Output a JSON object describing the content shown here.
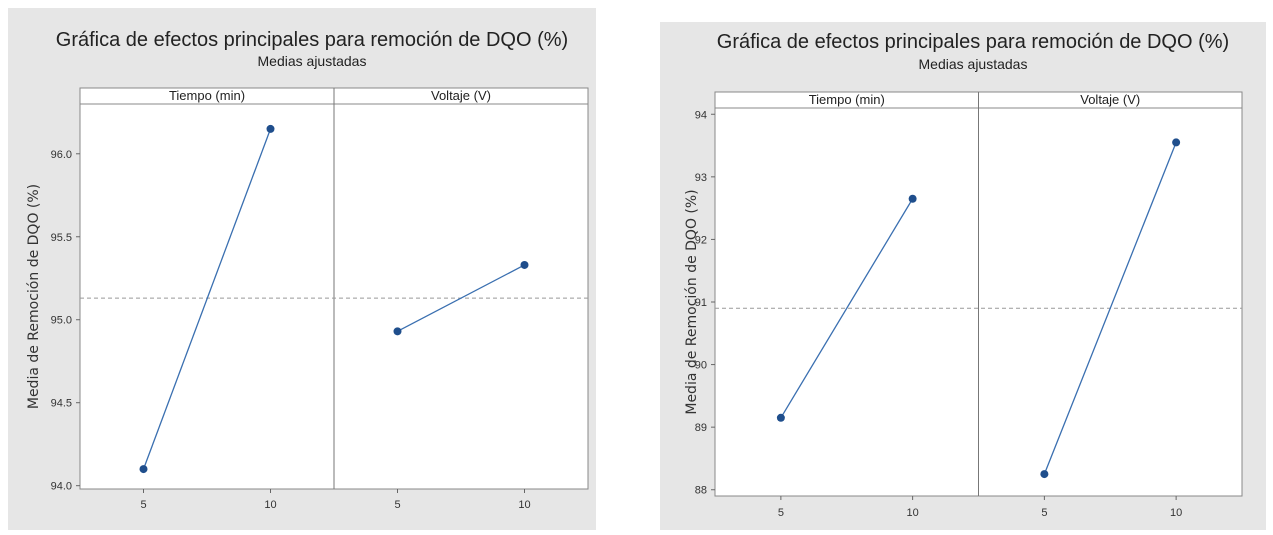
{
  "chart_data": [
    {
      "type": "line",
      "title": "Gráfica de efectos principales para remoción de DQO (%)",
      "subtitle": "Medias ajustadas",
      "ylabel": "Media de Remoción de DQO (%)",
      "ylim": [
        93.98,
        96.3
      ],
      "yticks": [
        "94.0",
        "94.5",
        "95.0",
        "95.5",
        "96.0"
      ],
      "reference_line": 95.13,
      "grid": false,
      "facets": [
        {
          "name": "Tiempo (min)",
          "x": [
            "5",
            "10"
          ],
          "values": [
            94.1,
            96.15
          ]
        },
        {
          "name": "Voltaje (V)",
          "x": [
            "5",
            "10"
          ],
          "values": [
            94.93,
            95.33
          ]
        }
      ]
    },
    {
      "type": "line",
      "title": "Gráfica de efectos principales para remoción de DQO (%)",
      "subtitle": "Medias ajustadas",
      "ylabel": "Media de Remoción de DQO (%)",
      "ylim": [
        87.9,
        94.1
      ],
      "yticks": [
        "88",
        "89",
        "90",
        "91",
        "92",
        "93",
        "94"
      ],
      "reference_line": 90.9,
      "grid": false,
      "facets": [
        {
          "name": "Tiempo (min)",
          "x": [
            "5",
            "10"
          ],
          "values": [
            89.15,
            92.65
          ]
        },
        {
          "name": "Voltaje (V)",
          "x": [
            "5",
            "10"
          ],
          "values": [
            88.25,
            93.55
          ]
        }
      ]
    }
  ]
}
